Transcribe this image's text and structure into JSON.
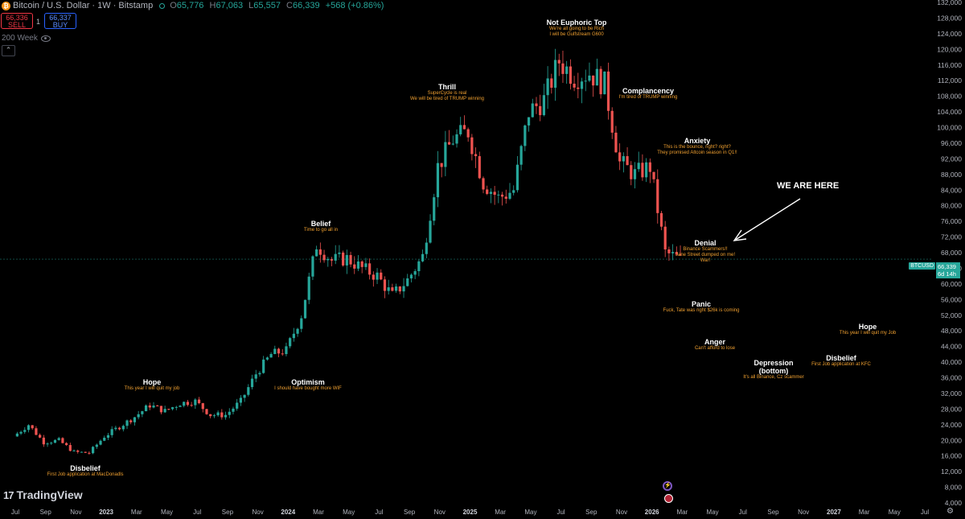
{
  "header": {
    "coin_glyph": "₿",
    "symbol_title": "Bitcoin / U.S. Dollar · 1W · Bitstamp",
    "open_label": "O",
    "open": "65,776",
    "high_label": "H",
    "high": "67,063",
    "low_label": "L",
    "low": "65,557",
    "close_label": "C",
    "close": "66,339",
    "change": "+568 (+0.86%)"
  },
  "trade": {
    "sell_price": "66,336",
    "sell_label": "SELL",
    "spread": "1",
    "buy_price": "66,337",
    "buy_label": "BUY"
  },
  "indicator": {
    "label": "200 Week"
  },
  "brand": {
    "mark": "17",
    "name": "TradingView"
  },
  "price_tag": {
    "ticker": "BTCUSD",
    "price": "66,339",
    "countdown": "6d 14h",
    "color": "#26a69a"
  },
  "colors": {
    "up": "#26a69a",
    "down": "#ef5350",
    "annotation": "#f0a030",
    "background": "#000000"
  },
  "annotations": [
    {
      "title": "Disbelief",
      "subtitle": "First Job application at MacDonadls"
    },
    {
      "title": "Hope",
      "subtitle": "This year I will quit my job"
    },
    {
      "title": "Optimism",
      "subtitle": "I should have bought more WIF"
    },
    {
      "title": "Belief",
      "subtitle": "Time to go all in"
    },
    {
      "title": "Thrill",
      "subtitle": "SuperCycle is real",
      "subtitle2": "We will be tired of TRUMP winning"
    },
    {
      "title": "Not Euphoric Top",
      "subtitle": "We're all going to be Rich",
      "subtitle2": "I will be Gulfstream G600"
    },
    {
      "title": "Complancency",
      "subtitle": "I'm tired of TRUMP winning"
    },
    {
      "title": "Anxiety",
      "subtitle": "This is the bounce, right? right?",
      "subtitle2": "They promised Altcoin season in Q1!!"
    },
    {
      "title": "Denial",
      "subtitle": "Binance Scammers!!",
      "subtitle2": "Jane Street dumped on me!",
      "subtitle3": "War!"
    },
    {
      "title": "Panic",
      "subtitle": "Fuck, Tate was right $26k is coming"
    },
    {
      "title": "Anger",
      "subtitle": "Can't afford to lose"
    },
    {
      "title": "Depression",
      "title2": "(bottom)",
      "subtitle": "It's all Binance, Cz scammer"
    },
    {
      "title": "Disbelief",
      "subtitle": "First Job application at KFC"
    },
    {
      "title": "Hope",
      "subtitle": "This year I will quit my Job"
    }
  ],
  "we_are_here": "WE ARE HERE",
  "chart_data": {
    "type": "candlestick",
    "interval": "1W",
    "y_axis_side": "right",
    "y_scale": "linear",
    "ylim": [
      4000,
      132000
    ],
    "y_ticks": [
      "132,000",
      "128,000",
      "124,000",
      "120,000",
      "116,000",
      "112,000",
      "108,000",
      "104,000",
      "100,000",
      "96,000",
      "92,000",
      "88,000",
      "84,000",
      "80,000",
      "76,000",
      "72,000",
      "68,000",
      "64,000",
      "60,000",
      "56,000",
      "52,000",
      "48,000",
      "44,000",
      "40,000",
      "36,000",
      "32,000",
      "28,000",
      "24,000",
      "20,000",
      "16,000",
      "12,000",
      "8,000",
      "4,000"
    ],
    "x_ticks": [
      "Jul",
      "Sep",
      "Nov",
      "2023",
      "Mar",
      "May",
      "Jul",
      "Sep",
      "Nov",
      "2024",
      "Mar",
      "May",
      "Jul",
      "Sep",
      "Nov",
      "2025",
      "Mar",
      "May",
      "Jul",
      "Sep",
      "Nov",
      "2026",
      "Mar",
      "May",
      "Jul",
      "Sep",
      "Nov",
      "2027",
      "Mar",
      "May",
      "Jul"
    ],
    "bold_x_ticks": [
      "2023",
      "2024",
      "2025",
      "2026",
      "2027"
    ],
    "last_close": 66339,
    "grid": false,
    "price_path_anchors": [
      [
        "Jul 2022",
        21000
      ],
      [
        "Aug 2022",
        24000
      ],
      [
        "Sep 2022",
        19500
      ],
      [
        "Oct 2022",
        20000
      ],
      [
        "Nov 2022",
        17000
      ],
      [
        "Dec 2022",
        16800
      ],
      [
        "Jan 2023",
        21000
      ],
      [
        "Feb 2023",
        23500
      ],
      [
        "Mar 2023",
        26000
      ],
      [
        "Apr 2023",
        29000
      ],
      [
        "May 2023",
        27500
      ],
      [
        "Jun 2023",
        29500
      ],
      [
        "Jul 2023",
        30000
      ],
      [
        "Aug 2023",
        26500
      ],
      [
        "Sep 2023",
        26500
      ],
      [
        "Oct 2023",
        30000
      ],
      [
        "Nov 2023",
        37000
      ],
      [
        "Dec 2023",
        42000
      ],
      [
        "Jan 2024",
        43000
      ],
      [
        "Feb 2024",
        52000
      ],
      [
        "Mar 2024",
        70000
      ],
      [
        "Apr 2024",
        66000
      ],
      [
        "May 2024",
        66500
      ],
      [
        "Jun 2024",
        64000
      ],
      [
        "Jul 2024",
        62000
      ],
      [
        "Aug 2024",
        57000
      ],
      [
        "Sep 2024",
        61000
      ],
      [
        "Oct 2024",
        67000
      ],
      [
        "Nov 2024",
        90000
      ],
      [
        "Dec 2024",
        97000
      ],
      [
        "Jan 2025",
        99000
      ],
      [
        "Feb 2025",
        86000
      ],
      [
        "Mar 2025",
        82000
      ],
      [
        "Apr 2025",
        84000
      ],
      [
        "May 2025",
        104000
      ],
      [
        "Jun 2025",
        107000
      ],
      [
        "Jul 2025",
        117000
      ],
      [
        "Aug 2025",
        113000
      ],
      [
        "Sep 2025",
        114000
      ],
      [
        "Oct 2025",
        111000
      ],
      [
        "Nov 2025",
        91000
      ],
      [
        "Dec 2025",
        88000
      ],
      [
        "Jan 2026",
        90000
      ],
      [
        "Feb 2026",
        68000
      ],
      [
        "Mar 2026",
        66339
      ]
    ]
  }
}
